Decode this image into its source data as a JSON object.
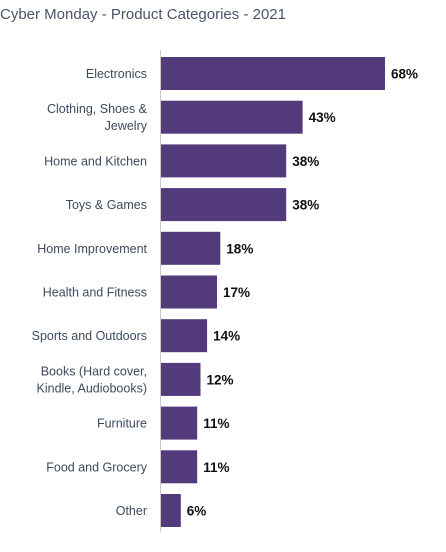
{
  "chart_data": {
    "type": "bar",
    "orientation": "horizontal",
    "title": "Cyber Monday - Product Categories - 2021",
    "categories": [
      [
        "Electronics"
      ],
      [
        "Clothing, Shoes &",
        "Jewelry"
      ],
      [
        "Home and Kitchen"
      ],
      [
        "Toys & Games"
      ],
      [
        "Home Improvement"
      ],
      [
        "Health and Fitness"
      ],
      [
        "Sports and Outdoors"
      ],
      [
        "Books (Hard cover,",
        "Kindle, Audiobooks)"
      ],
      [
        "Furniture"
      ],
      [
        "Food and Grocery"
      ],
      [
        "Other"
      ]
    ],
    "values": [
      68,
      43,
      38,
      38,
      18,
      17,
      14,
      12,
      11,
      11,
      6
    ],
    "value_suffix": "%",
    "xlim": [
      0,
      68
    ],
    "bar_color": "#533a7b",
    "grid": false,
    "xlabel": "",
    "ylabel": ""
  }
}
